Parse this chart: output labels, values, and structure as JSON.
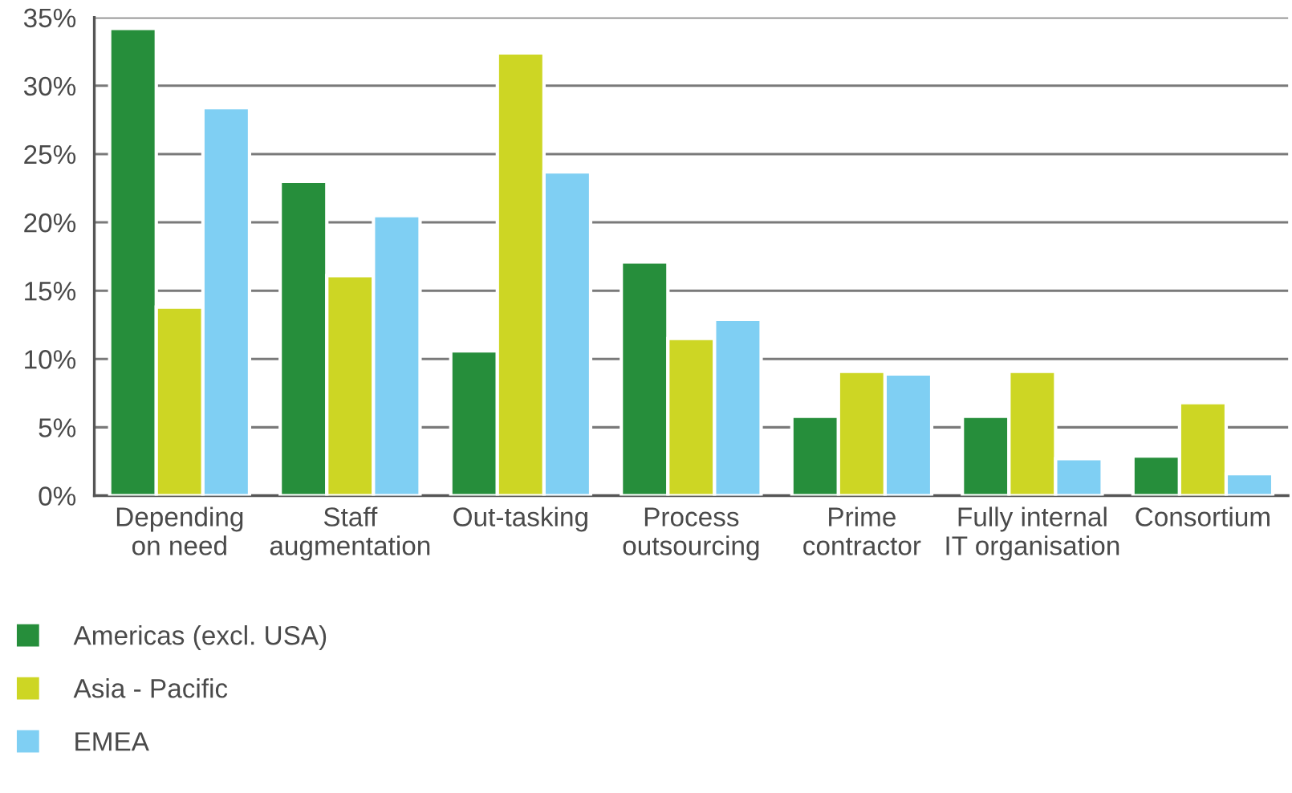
{
  "chart_data": {
    "type": "bar",
    "categories": [
      "Depending\non need",
      "Staff\naugmentation",
      "Out-tasking",
      "Process\noutsourcing",
      "Prime\ncontractor",
      "Fully internal\nIT organisation",
      "Consortium"
    ],
    "series": [
      {
        "name": "Americas (excl. USA)",
        "color": "#268e3b",
        "values": [
          34.2,
          23.0,
          10.6,
          17.1,
          5.8,
          5.8,
          2.9
        ]
      },
      {
        "name": "Asia - Pacific",
        "color": "#cdd624",
        "values": [
          13.8,
          16.1,
          32.4,
          11.5,
          9.1,
          9.1,
          6.8
        ]
      },
      {
        "name": "EMEA",
        "color": "#7fcff3",
        "values": [
          28.4,
          20.5,
          23.7,
          12.9,
          8.9,
          2.7,
          1.6
        ]
      }
    ],
    "ylim": [
      0,
      35
    ],
    "yticks": [
      {
        "value": 0,
        "label": "0%"
      },
      {
        "value": 5,
        "label": "5%"
      },
      {
        "value": 10,
        "label": "10%"
      },
      {
        "value": 15,
        "label": "15%"
      },
      {
        "value": 20,
        "label": "20%"
      },
      {
        "value": 25,
        "label": "25%"
      },
      {
        "value": 30,
        "label": "30%"
      },
      {
        "value": 35,
        "label": "35%"
      }
    ],
    "grid": "y",
    "legend": "bottom left"
  }
}
